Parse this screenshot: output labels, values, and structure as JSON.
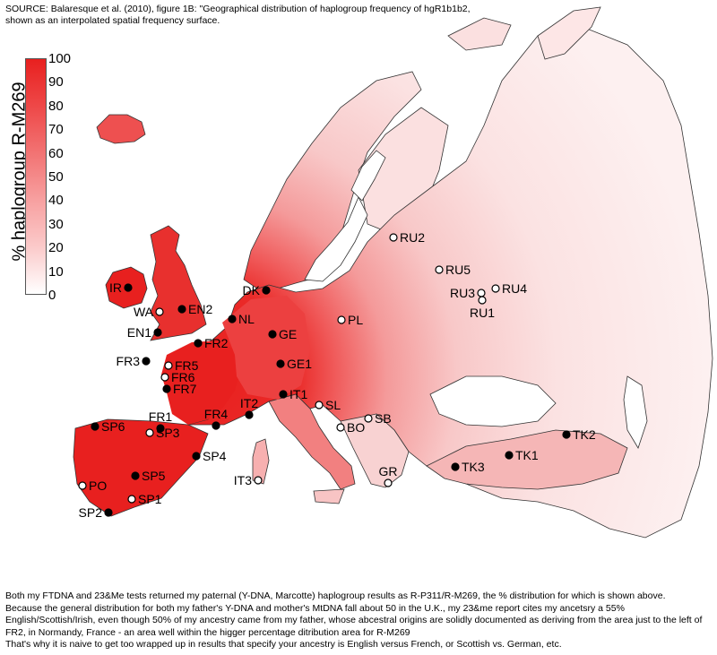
{
  "source_text": "SOURCE:  Balaresque et al. (2010), figure 1B: \"Geographical distribution of haplogroup frequency of hgR1b1b2, shown as an interpolated spatial frequency surface.",
  "legend": {
    "title": "% haplogroup R-M269",
    "ticks": [
      "100",
      "90",
      "80",
      "70",
      "60",
      "50",
      "40",
      "30",
      "20",
      "10",
      "0"
    ],
    "colors": {
      "high": "#e8201f",
      "mid": "#f49090",
      "low": "#ffffff"
    }
  },
  "points": [
    {
      "id": "IR",
      "label": "IR",
      "filled": true
    },
    {
      "id": "WA",
      "label": "WA",
      "filled": false
    },
    {
      "id": "EN2",
      "label": "EN2",
      "filled": true
    },
    {
      "id": "EN1",
      "label": "EN1",
      "filled": true
    },
    {
      "id": "DK",
      "label": "DK",
      "filled": true
    },
    {
      "id": "NL",
      "label": "NL",
      "filled": true
    },
    {
      "id": "FR2",
      "label": "FR2",
      "filled": true
    },
    {
      "id": "FR3",
      "label": "FR3",
      "filled": true
    },
    {
      "id": "FR5",
      "label": "FR5",
      "filled": false
    },
    {
      "id": "FR6",
      "label": "FR6",
      "filled": false
    },
    {
      "id": "FR7",
      "label": "FR7",
      "filled": true
    },
    {
      "id": "GE",
      "label": "GE",
      "filled": true
    },
    {
      "id": "GE1",
      "label": "GE1",
      "filled": true
    },
    {
      "id": "PL",
      "label": "PL",
      "filled": false
    },
    {
      "id": "RU2",
      "label": "RU2",
      "filled": false
    },
    {
      "id": "RU5",
      "label": "RU5",
      "filled": false
    },
    {
      "id": "RU3",
      "label": "RU3",
      "filled": false
    },
    {
      "id": "RU4",
      "label": "RU4",
      "filled": false
    },
    {
      "id": "RU1",
      "label": "RU1",
      "filled": false
    },
    {
      "id": "IT1",
      "label": "IT1",
      "filled": true
    },
    {
      "id": "IT2",
      "label": "IT2",
      "filled": true
    },
    {
      "id": "SL",
      "label": "SL",
      "filled": false
    },
    {
      "id": "SB",
      "label": "SB",
      "filled": false
    },
    {
      "id": "BO",
      "label": "BO",
      "filled": false
    },
    {
      "id": "FR1",
      "label": "FR1",
      "filled": true
    },
    {
      "id": "FR4",
      "label": "FR4",
      "filled": true
    },
    {
      "id": "SP6",
      "label": "SP6",
      "filled": true
    },
    {
      "id": "SP3",
      "label": "SP3",
      "filled": false
    },
    {
      "id": "SP4",
      "label": "SP4",
      "filled": true
    },
    {
      "id": "SP5",
      "label": "SP5",
      "filled": true
    },
    {
      "id": "PO",
      "label": "PO",
      "filled": false
    },
    {
      "id": "SP1",
      "label": "SP1",
      "filled": false
    },
    {
      "id": "SP2",
      "label": "SP2",
      "filled": true
    },
    {
      "id": "IT3",
      "label": "IT3",
      "filled": false
    },
    {
      "id": "GR",
      "label": "GR",
      "filled": false
    },
    {
      "id": "TK1",
      "label": "TK1",
      "filled": true
    },
    {
      "id": "TK2",
      "label": "TK2",
      "filled": true
    },
    {
      "id": "TK3",
      "label": "TK3",
      "filled": true
    }
  ],
  "caption": [
    "Both my FTDNA and 23&Me tests returned my paternal (Y-DNA, Marcotte) haplogroup results as R-P311/R-M269, the % distribution for which is shown above.",
    "Because the general distribution for both my father's Y-DNA and mother's MtDNA fall about 50 in the U.K., my 23&me report cites my ancetsry a 55% English/Scottish/Irish, even though 50% of my ancestry came from my father, whose abcestral origins are solidly documented as deriving from the area just to the left of FR2, in Normandy, France - an area well within the higger percentage ditribution area for R-M269",
    "That's why it is naive to get too wrapped up in results that specify your ancestry is English versus French, or Scottish vs. German, etc."
  ]
}
